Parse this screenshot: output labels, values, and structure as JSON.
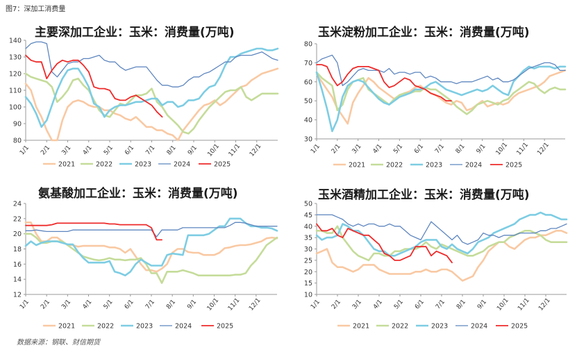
{
  "figure_label": "图7：深加工消费量",
  "source": "数据来源：钢联、财信期货",
  "colors": {
    "2021": "#f9c9a3",
    "2022": "#c5dc9a",
    "2023": "#7dcde3",
    "2024": "#5e86bf",
    "2025": "#ee2a2a"
  },
  "chart_data": [
    {
      "type": "line",
      "title": "主要深加工企业：玉米：消费量(万吨)",
      "ylim": [
        80,
        140
      ],
      "yticks": [
        80,
        90,
        100,
        110,
        120,
        130,
        140
      ],
      "months": [
        "1/1",
        "2/1",
        "3/1",
        "4/1",
        "5/1",
        "6/1",
        "7/1",
        "8/1",
        "9/1",
        "10/1",
        "11/1",
        "12/1"
      ],
      "legend": [
        "2021",
        "2022",
        "2023",
        "2024",
        "2025"
      ],
      "series": [
        {
          "name": "2021",
          "values": [
            114,
            110,
            100,
            94,
            86,
            80,
            80,
            92,
            100,
            103,
            104,
            103,
            101,
            100,
            100,
            98,
            98,
            96,
            95,
            93,
            92,
            94,
            91,
            88,
            88,
            86,
            86,
            84,
            83,
            80,
            86,
            90,
            94,
            98,
            101,
            102,
            104,
            101,
            103,
            106,
            109,
            112,
            113,
            116,
            118,
            120,
            121,
            122,
            123
          ]
        },
        {
          "name": "2022",
          "values": [
            120,
            118,
            117,
            116,
            115,
            112,
            103,
            106,
            110,
            116,
            117,
            113,
            110,
            104,
            98,
            95,
            94,
            98,
            102,
            101,
            104,
            107,
            107,
            108,
            111,
            103,
            100,
            95,
            92,
            89,
            85,
            84,
            87,
            92,
            96,
            100,
            103,
            106,
            109,
            110,
            110,
            112,
            106,
            104,
            106,
            108,
            108,
            108,
            108
          ]
        },
        {
          "name": "2023",
          "values": [
            106,
            102,
            96,
            88,
            92,
            101,
            110,
            117,
            122,
            123,
            123,
            118,
            112,
            102,
            100,
            94,
            98,
            100,
            101,
            101,
            102,
            103,
            103,
            104,
            105,
            105,
            101,
            103,
            103,
            100,
            101,
            104,
            104,
            105,
            109,
            112,
            113,
            118,
            125,
            130,
            130,
            132,
            133,
            134,
            135,
            135,
            134,
            134,
            135
          ]
        },
        {
          "name": "2024",
          "values": [
            135,
            138,
            139,
            139,
            138,
            121,
            118,
            122,
            126,
            127,
            127,
            129,
            129,
            130,
            131,
            128,
            127,
            127,
            124,
            122,
            123,
            124,
            124,
            124,
            120,
            116,
            113,
            113,
            112,
            112,
            113,
            116,
            118,
            118,
            120,
            121,
            123,
            125,
            127,
            127,
            130,
            131,
            131,
            131,
            132,
            133,
            131,
            129,
            128
          ]
        },
        {
          "name": "2025",
          "values": [
            131,
            128,
            127,
            127,
            117,
            122,
            126,
            128,
            127,
            128,
            128,
            125,
            121,
            112,
            111,
            111,
            110,
            105,
            104,
            104,
            106,
            107,
            105,
            103,
            101,
            97,
            94
          ]
        }
      ]
    },
    {
      "type": "line",
      "title": "玉米淀粉加工企业：玉米：消费量(万吨)",
      "ylim": [
        30,
        80
      ],
      "yticks": [
        30,
        40,
        50,
        60,
        70,
        80
      ],
      "months": [
        "1/1",
        "2/1",
        "3/1",
        "4/1",
        "5/1",
        "6/1",
        "7/1",
        "8/1",
        "9/1",
        "10/1",
        "11/1",
        "12/1"
      ],
      "legend": [
        "2021",
        "2022",
        "2023",
        "2024",
        "2025"
      ],
      "series": [
        {
          "name": "2021",
          "values": [
            64,
            60,
            56,
            52,
            46,
            42,
            38,
            49,
            54,
            58,
            62,
            60,
            57,
            55,
            53,
            51,
            53,
            54,
            55,
            57,
            58,
            56,
            54,
            53,
            51,
            49,
            48,
            50,
            49,
            45,
            46,
            48,
            50,
            47,
            48,
            49,
            48,
            49,
            52,
            54,
            55,
            56,
            57,
            58,
            60,
            63,
            64,
            65,
            66
          ]
        },
        {
          "name": "2022",
          "values": [
            65,
            62,
            60,
            58,
            45,
            48,
            56,
            60,
            61,
            62,
            56,
            54,
            52,
            50,
            48,
            51,
            53,
            54,
            54,
            55,
            55,
            57,
            56,
            56,
            54,
            52,
            50,
            47,
            45,
            43,
            45,
            48,
            49,
            50,
            49,
            48,
            50,
            51,
            54,
            56,
            58,
            60,
            59,
            56,
            54,
            56,
            57,
            56,
            56
          ]
        },
        {
          "name": "2023",
          "values": [
            65,
            56,
            46,
            34,
            40,
            52,
            58,
            60,
            61,
            60,
            57,
            54,
            51,
            49,
            48,
            50,
            52,
            53,
            54,
            56,
            56,
            57,
            59,
            60,
            58,
            56,
            55,
            54,
            53,
            54,
            55,
            56,
            55,
            56,
            58,
            56,
            54,
            53,
            60,
            63,
            66,
            68,
            67,
            68,
            68,
            68,
            67,
            68,
            68
          ]
        },
        {
          "name": "2024",
          "values": [
            70,
            72,
            73,
            74,
            70,
            58,
            60,
            63,
            66,
            67,
            66,
            66,
            66,
            65,
            67,
            64,
            65,
            65,
            64,
            65,
            65,
            62,
            63,
            62,
            60,
            60,
            60,
            59,
            60,
            60,
            60,
            61,
            62,
            63,
            61,
            62,
            60,
            60,
            61,
            63,
            65,
            67,
            68,
            69,
            70,
            70,
            69,
            66,
            66
          ]
        },
        {
          "name": "2025",
          "values": [
            69,
            69,
            68,
            62,
            58,
            60,
            64,
            67,
            68,
            68,
            68,
            67,
            66,
            60,
            57,
            58,
            60,
            62,
            61,
            58,
            57,
            56,
            54,
            53,
            52,
            50,
            50
          ]
        }
      ]
    },
    {
      "type": "line",
      "title": "氨基酸加工企业：玉米：消费量(万吨)",
      "ylim": [
        12,
        24
      ],
      "yticks": [
        12,
        14,
        16,
        18,
        20,
        22,
        24
      ],
      "months": [
        "1/1",
        "2/1",
        "3/1",
        "4/1",
        "5/1",
        "6/1",
        "7/1",
        "8/1",
        "9/1",
        "10/1",
        "11/1",
        "12/1"
      ],
      "legend": [
        "2021",
        "2022",
        "2023",
        "2024",
        "2025"
      ],
      "series": [
        {
          "name": "2021",
          "values": [
            21.5,
            21.5,
            20,
            19,
            19,
            19.5,
            19.5,
            19,
            18.5,
            18.5,
            18.3,
            18.4,
            18.4,
            18.4,
            18.4,
            18.4,
            18.2,
            18.2,
            18,
            17.5,
            18,
            17,
            16,
            15.2,
            15.2,
            15,
            15.4,
            16,
            17.5,
            18,
            18,
            17.6,
            17.5,
            17.5,
            17.2,
            17.2,
            17.2,
            17.5,
            18.1,
            18.2,
            18.4,
            18.5,
            18.5,
            18.6,
            18.8,
            19,
            19.4,
            19.5,
            19.4
          ]
        },
        {
          "name": "2022",
          "values": [
            20,
            20,
            19.5,
            18.8,
            18.8,
            19,
            19,
            19,
            18.5,
            18,
            17.5,
            17,
            16.8,
            16.6,
            16.5,
            16.6,
            16.8,
            16.6,
            16.6,
            16.5,
            16.6,
            16.6,
            16.8,
            16,
            14.8,
            14.8,
            13.5,
            15,
            15,
            15,
            15.2,
            15,
            14.8,
            14.5,
            14.5,
            14.5,
            14.5,
            14.5,
            14.5,
            14.5,
            14.6,
            14.6,
            14.8,
            15.8,
            16.5,
            17.5,
            18.5,
            19,
            19.5
          ]
        },
        {
          "name": "2023",
          "values": [
            18.4,
            19,
            18.5,
            18.8,
            19,
            19,
            19,
            18.8,
            18.6,
            18.6,
            17.6,
            16.8,
            16.2,
            16.2,
            16.2,
            16.2,
            16.4,
            15,
            14.8,
            14.5,
            15,
            16,
            16.6,
            16.2,
            15.8,
            15.8,
            15.8,
            17.2,
            17.4,
            17.3,
            17.2,
            19.8,
            19.8,
            19.8,
            19.8,
            20,
            20.5,
            21,
            21,
            22,
            22,
            22,
            21.4,
            21,
            21,
            20.8,
            20.8,
            20.7,
            20.4
          ]
        },
        {
          "name": "2024",
          "values": [
            20.4,
            20.4,
            20.5,
            20.4,
            20.3,
            20.3,
            20.3,
            20.3,
            20.3,
            20.5,
            20.5,
            20.5,
            20.5,
            20.5,
            20.5,
            20.5,
            20.5,
            20.5,
            20.5,
            20.5,
            20.5,
            20.5,
            20.5,
            20.5,
            20.5,
            19.6,
            20.5,
            20.5,
            20.5,
            20.5,
            20.8,
            20.8,
            20.8,
            20.8,
            20.8,
            20.8,
            20.8,
            20.8,
            20.8,
            21.1,
            21.5,
            21.5,
            21.4,
            21.2,
            21,
            21,
            21,
            21,
            21
          ]
        },
        {
          "name": "2025",
          "values": [
            21.1,
            21.1,
            21.1,
            21.1,
            21.1,
            21.2,
            21.4,
            21.4,
            21.4,
            21.4,
            21.4,
            21.4,
            21.4,
            21.4,
            21.4,
            21.4,
            21.3,
            21.3,
            21.2,
            21.2,
            21.2,
            21.2,
            21.2,
            21.2,
            20.8,
            19.2,
            19.2
          ]
        }
      ]
    },
    {
      "type": "line",
      "title": "玉米酒精加工企业：玉米：消费量(万吨)",
      "ylim": [
        10,
        50
      ],
      "yticks": [
        10,
        15,
        20,
        25,
        30,
        35,
        40,
        45,
        50
      ],
      "months": [
        "1/1",
        "2/1",
        "3/1",
        "4/1",
        "5/1",
        "6/1",
        "7/1",
        "8/1",
        "9/1",
        "10/1",
        "11/1",
        "12/1"
      ],
      "legend": [
        "2021",
        "2022",
        "2023",
        "2024",
        "2025"
      ],
      "series": [
        {
          "name": "2021",
          "values": [
            28,
            29,
            30,
            24,
            22,
            22,
            21,
            20,
            21,
            23,
            23,
            23,
            21,
            20,
            19,
            19,
            19,
            19,
            19,
            20,
            20,
            21,
            20,
            20,
            21,
            21,
            20,
            18,
            16,
            17,
            18,
            22,
            25,
            29,
            31,
            33,
            33,
            31,
            30,
            32,
            34,
            35,
            35,
            36,
            36,
            37,
            38,
            38,
            37
          ]
        },
        {
          "name": "2022",
          "values": [
            38,
            38,
            37,
            37,
            40,
            35,
            32,
            29,
            27,
            26,
            25,
            28,
            28,
            27,
            27,
            29,
            29,
            30,
            30,
            30,
            31,
            33,
            31,
            30,
            32,
            31,
            30,
            29,
            28,
            27,
            27,
            28,
            29,
            31,
            32,
            33,
            33,
            35,
            36,
            37,
            38,
            38,
            37,
            36,
            34,
            33,
            33,
            33,
            33
          ]
        },
        {
          "name": "2023",
          "values": [
            36,
            34,
            35,
            35,
            36,
            41,
            40,
            38,
            38,
            36,
            33,
            30,
            29,
            29,
            27,
            27,
            28,
            29,
            30,
            31,
            33,
            34,
            34,
            34,
            31,
            30,
            32,
            30,
            29,
            28,
            30,
            33,
            34,
            35,
            37,
            38,
            39,
            40,
            41,
            43,
            44,
            45,
            45,
            46,
            45,
            45,
            44,
            43,
            43
          ]
        },
        {
          "name": "2024",
          "values": [
            45,
            45,
            45,
            45,
            44,
            43,
            41,
            40,
            41,
            40,
            41,
            41,
            40,
            40,
            41,
            40,
            40,
            38,
            36,
            35,
            34,
            38,
            42,
            40,
            38,
            36,
            34,
            36,
            33,
            32,
            33,
            34,
            37,
            36,
            36,
            35,
            36,
            36,
            36,
            37,
            37,
            37,
            37,
            38,
            38,
            39,
            39,
            40,
            41
          ]
        },
        {
          "name": "2025",
          "values": [
            41,
            38,
            38,
            39,
            36,
            35,
            39,
            38,
            37,
            36,
            36,
            34,
            32,
            28,
            27,
            25,
            25,
            26,
            27,
            31,
            31,
            31,
            27,
            29,
            28,
            27,
            24
          ]
        }
      ]
    }
  ]
}
